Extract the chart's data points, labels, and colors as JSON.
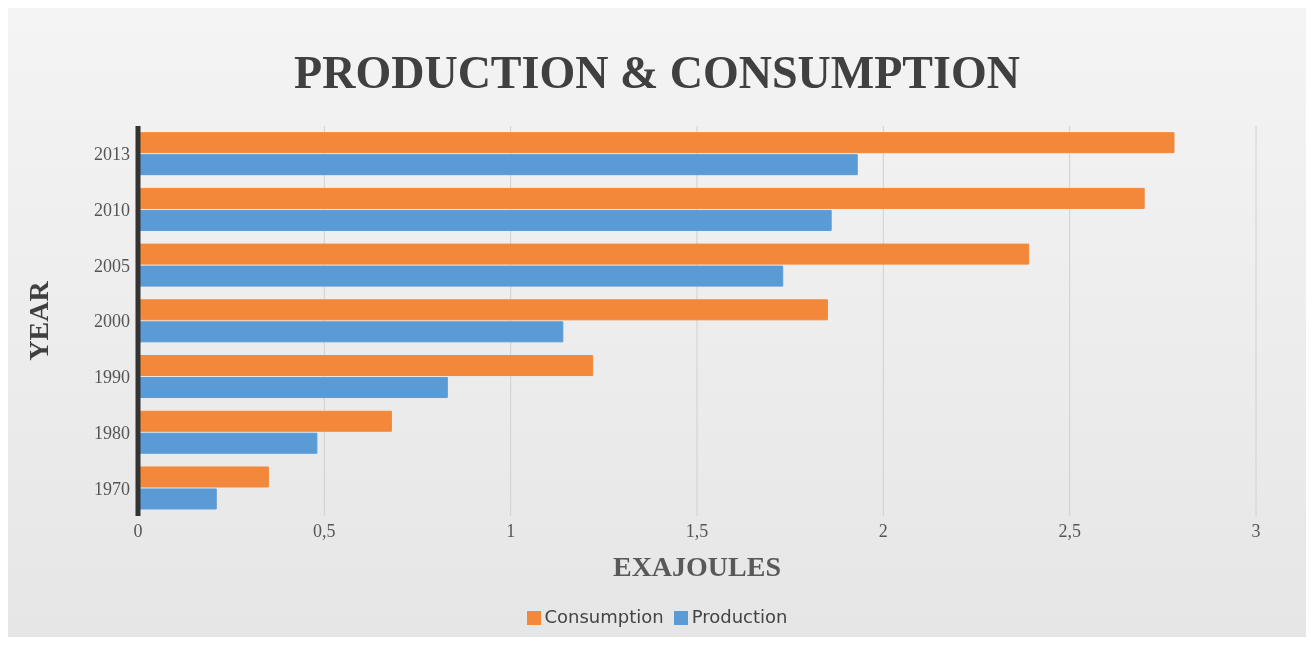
{
  "chart_data": {
    "type": "bar",
    "orientation": "horizontal",
    "title": "PRODUCTION & CONSUMPTION",
    "xlabel": "EXAJOULES",
    "ylabel": "YEAR",
    "categories": [
      "2013",
      "2010",
      "2005",
      "2000",
      "1990",
      "1980",
      "1970"
    ],
    "series": [
      {
        "name": "Consumption",
        "color": "#f4883a",
        "values": [
          2.78,
          2.7,
          2.39,
          1.85,
          1.22,
          0.68,
          0.35
        ]
      },
      {
        "name": "Production",
        "color": "#5b9bd5",
        "values": [
          1.93,
          1.86,
          1.73,
          1.14,
          0.83,
          0.48,
          0.21
        ]
      }
    ],
    "xlim": [
      0,
      3
    ],
    "xticks": [
      0,
      {
        "value": 0.5,
        "label": "0,5"
      },
      1,
      {
        "value": 1.5,
        "label": "1,5"
      },
      2,
      {
        "value": 2.5,
        "label": "2,5"
      },
      3
    ],
    "grid": "x",
    "legend": "bottom"
  }
}
